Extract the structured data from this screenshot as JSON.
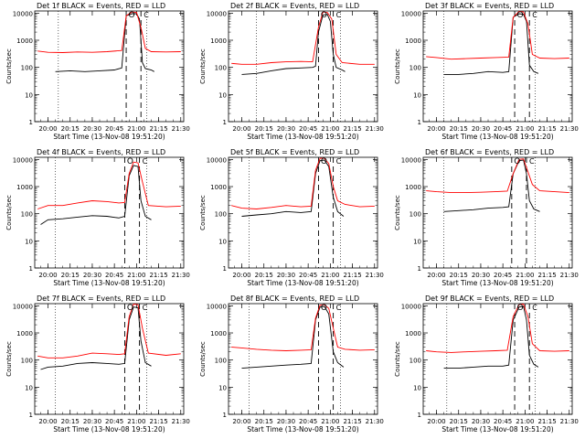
{
  "common": {
    "ylabel": "Counts/sec",
    "xlabel": "Start Time (13-Nov-08 19:51:20)",
    "xticks": [
      "20:00",
      "20:15",
      "20:30",
      "20:45",
      "21:00",
      "21:15",
      "21:30"
    ],
    "yticks": [
      "1",
      "10",
      "100",
      "1000",
      "10000"
    ],
    "annotations": [
      "O",
      "C"
    ],
    "colors": {
      "events": "#000000",
      "lld": "#ff0000"
    }
  },
  "chart_data": [
    {
      "type": "line",
      "title": "Det 1f BLACK = Events, RED = LLD",
      "xlabel": "Start Time (13-Nov-08 19:51:20)",
      "ylabel": "Counts/sec",
      "yscale": "log",
      "ylim": [
        1,
        12000
      ],
      "xlim": [
        "19:51",
        "21:32"
      ],
      "series": [
        {
          "name": "Events",
          "color": "#000000",
          "x": [
            "20:05",
            "20:15",
            "20:25",
            "20:35",
            "20:45",
            "20:50",
            "20:53",
            "20:57",
            "21:00",
            "21:02",
            "21:04",
            "21:06",
            "21:10",
            "21:12"
          ],
          "values": [
            70,
            75,
            70,
            75,
            80,
            95,
            8000,
            9500,
            9500,
            6000,
            150,
            90,
            80,
            70
          ]
        },
        {
          "name": "LLD",
          "color": "#ff0000",
          "x": [
            "19:53",
            "20:00",
            "20:10",
            "20:20",
            "20:30",
            "20:40",
            "20:50",
            "20:53",
            "20:57",
            "21:00",
            "21:03",
            "21:06",
            "21:10",
            "21:20",
            "21:30"
          ],
          "values": [
            400,
            360,
            350,
            370,
            360,
            380,
            420,
            8000,
            11000,
            10500,
            3000,
            500,
            380,
            370,
            380
          ]
        }
      ],
      "vlines_dotted": [
        "20:07",
        "21:07"
      ],
      "vlines_dashed": [
        "20:53",
        "21:03"
      ]
    },
    {
      "type": "line",
      "title": "Det 2f BLACK = Events, RED = LLD",
      "xlabel": "Start Time (13-Nov-08 19:51:20)",
      "ylabel": "Counts/sec",
      "yscale": "log",
      "ylim": [
        1,
        12000
      ],
      "xlim": [
        "19:51",
        "21:32"
      ],
      "series": [
        {
          "name": "Events",
          "color": "#000000",
          "x": [
            "20:00",
            "20:10",
            "20:20",
            "20:30",
            "20:40",
            "20:48",
            "20:50",
            "20:52",
            "20:55",
            "20:58",
            "21:00",
            "21:02",
            "21:04",
            "21:08",
            "21:10"
          ],
          "values": [
            55,
            60,
            75,
            90,
            95,
            100,
            110,
            2000,
            8500,
            9000,
            5000,
            300,
            100,
            80,
            70
          ]
        },
        {
          "name": "LLD",
          "color": "#ff0000",
          "x": [
            "19:53",
            "20:00",
            "20:10",
            "20:20",
            "20:30",
            "20:40",
            "20:48",
            "20:52",
            "20:55",
            "20:58",
            "21:01",
            "21:04",
            "21:08",
            "21:20",
            "21:30"
          ],
          "values": [
            140,
            130,
            130,
            150,
            160,
            165,
            160,
            3000,
            11000,
            10500,
            6000,
            300,
            150,
            130,
            130
          ]
        }
      ],
      "vlines_dotted": [
        "20:10",
        "21:07"
      ],
      "vlines_dashed": [
        "20:52",
        "21:02"
      ]
    },
    {
      "type": "line",
      "title": "Det 3f BLACK = Events, RED = LLD",
      "xlabel": "Start Time (13-Nov-08 19:51:20)",
      "ylabel": "Counts/sec",
      "yscale": "log",
      "ylim": [
        1,
        12000
      ],
      "xlim": [
        "19:51",
        "21:32"
      ],
      "series": [
        {
          "name": "Events",
          "color": "#000000",
          "x": [
            "20:05",
            "20:15",
            "20:25",
            "20:35",
            "20:45",
            "20:49",
            "20:52",
            "20:56",
            "20:59",
            "21:01",
            "21:03",
            "21:06",
            "21:09"
          ],
          "values": [
            55,
            55,
            60,
            70,
            65,
            70,
            7000,
            9500,
            9000,
            5000,
            120,
            70,
            60
          ]
        },
        {
          "name": "LLD",
          "color": "#ff0000",
          "x": [
            "19:53",
            "20:00",
            "20:10",
            "20:20",
            "20:30",
            "20:40",
            "20:49",
            "20:52",
            "20:56",
            "20:59",
            "21:02",
            "21:05",
            "21:10",
            "21:20",
            "21:30"
          ],
          "values": [
            250,
            230,
            200,
            210,
            220,
            230,
            240,
            7000,
            11500,
            11000,
            4000,
            300,
            220,
            210,
            220
          ]
        }
      ],
      "vlines_dotted": [
        "20:05",
        "21:07"
      ],
      "vlines_dashed": [
        "20:53",
        "21:03"
      ]
    },
    {
      "type": "line",
      "title": "Det 4f BLACK = Events, RED = LLD",
      "xlabel": "Start Time (13-Nov-08 19:51:20)",
      "ylabel": "Counts/sec",
      "yscale": "log",
      "ylim": [
        1,
        12000
      ],
      "xlim": [
        "19:51",
        "21:32"
      ],
      "series": [
        {
          "name": "Events",
          "color": "#000000",
          "x": [
            "19:55",
            "20:00",
            "20:10",
            "20:20",
            "20:30",
            "20:40",
            "20:48",
            "20:52",
            "20:55",
            "20:58",
            "21:01",
            "21:03",
            "21:06",
            "21:10"
          ],
          "values": [
            40,
            60,
            65,
            75,
            85,
            80,
            70,
            80,
            2500,
            6000,
            5500,
            300,
            80,
            60
          ]
        },
        {
          "name": "LLD",
          "color": "#ff0000",
          "x": [
            "19:53",
            "20:00",
            "20:10",
            "20:20",
            "20:30",
            "20:40",
            "20:48",
            "20:52",
            "20:55",
            "20:58",
            "21:01",
            "21:04",
            "21:08",
            "21:20",
            "21:30"
          ],
          "values": [
            150,
            200,
            200,
            250,
            300,
            280,
            250,
            260,
            3000,
            8000,
            7500,
            1500,
            200,
            180,
            190
          ]
        }
      ],
      "vlines_dotted": [
        "20:05",
        "21:07"
      ],
      "vlines_dashed": [
        "20:52",
        "21:02"
      ]
    },
    {
      "type": "line",
      "title": "Det 5f BLACK = Events, RED = LLD",
      "xlabel": "Start Time (13-Nov-08 19:51:20)",
      "ylabel": "Counts/sec",
      "yscale": "log",
      "ylim": [
        1,
        12000
      ],
      "xlim": [
        "19:51",
        "21:32"
      ],
      "series": [
        {
          "name": "Events",
          "color": "#000000",
          "x": [
            "20:00",
            "20:10",
            "20:20",
            "20:30",
            "20:40",
            "20:47",
            "20:50",
            "20:53",
            "20:56",
            "20:59",
            "21:02",
            "21:05",
            "21:09"
          ],
          "values": [
            80,
            90,
            100,
            120,
            110,
            120,
            3000,
            9000,
            9500,
            5500,
            400,
            120,
            80
          ]
        },
        {
          "name": "LLD",
          "color": "#ff0000",
          "x": [
            "19:53",
            "20:00",
            "20:10",
            "20:20",
            "20:30",
            "20:40",
            "20:47",
            "20:50",
            "20:53",
            "20:56",
            "20:59",
            "21:02",
            "21:05",
            "21:10",
            "21:20",
            "21:30"
          ],
          "values": [
            200,
            160,
            150,
            170,
            200,
            180,
            190,
            4000,
            11000,
            11000,
            7000,
            1000,
            300,
            220,
            180,
            190
          ]
        }
      ],
      "vlines_dotted": [
        "20:05",
        "21:07"
      ],
      "vlines_dashed": [
        "20:52",
        "21:02"
      ]
    },
    {
      "type": "line",
      "title": "Det 6f BLACK = Events, RED = LLD",
      "xlabel": "Start Time (13-Nov-08 19:51:20)",
      "ylabel": "Counts/sec",
      "yscale": "log",
      "ylim": [
        1,
        12000
      ],
      "xlim": [
        "19:51",
        "21:32"
      ],
      "series": [
        {
          "name": "Events",
          "color": "#000000",
          "x": [
            "20:05",
            "20:15",
            "20:25",
            "20:35",
            "20:45",
            "20:49",
            "20:52",
            "20:56",
            "20:59",
            "21:01",
            "21:03",
            "21:06",
            "21:10"
          ],
          "values": [
            120,
            130,
            140,
            160,
            170,
            180,
            3000,
            9000,
            9500,
            3000,
            300,
            150,
            120
          ]
        },
        {
          "name": "LLD",
          "color": "#ff0000",
          "x": [
            "19:53",
            "20:00",
            "20:10",
            "20:20",
            "20:30",
            "20:40",
            "20:48",
            "20:52",
            "20:56",
            "20:59",
            "21:02",
            "21:05",
            "21:10",
            "21:20",
            "21:30"
          ],
          "values": [
            700,
            650,
            600,
            600,
            620,
            650,
            680,
            3000,
            10000,
            10500,
            3500,
            1200,
            700,
            650,
            600
          ]
        }
      ],
      "vlines_dotted": [
        "20:05",
        "21:07"
      ],
      "vlines_dashed": [
        "20:51",
        "21:01"
      ]
    },
    {
      "type": "line",
      "title": "Det 7f BLACK = Events, RED = LLD",
      "xlabel": "Start Time (13-Nov-08 19:51:20)",
      "ylabel": "Counts/sec",
      "yscale": "log",
      "ylim": [
        1,
        12000
      ],
      "xlim": [
        "19:51",
        "21:32"
      ],
      "series": [
        {
          "name": "Events",
          "color": "#000000",
          "x": [
            "19:55",
            "20:00",
            "20:10",
            "20:20",
            "20:30",
            "20:40",
            "20:48",
            "20:52",
            "20:55",
            "20:58",
            "21:01",
            "21:03",
            "21:06",
            "21:10"
          ],
          "values": [
            45,
            55,
            60,
            75,
            80,
            75,
            70,
            75,
            3000,
            9000,
            8500,
            500,
            80,
            60
          ]
        },
        {
          "name": "LLD",
          "color": "#ff0000",
          "x": [
            "19:53",
            "20:00",
            "20:10",
            "20:20",
            "20:30",
            "20:40",
            "20:48",
            "20:52",
            "20:55",
            "20:58",
            "21:01",
            "21:04",
            "21:08",
            "21:20",
            "21:30"
          ],
          "values": [
            140,
            120,
            120,
            140,
            180,
            170,
            160,
            170,
            4000,
            11500,
            11000,
            1500,
            180,
            150,
            170
          ]
        }
      ],
      "vlines_dotted": [
        "20:05",
        "21:07"
      ],
      "vlines_dashed": [
        "20:52",
        "21:02"
      ]
    },
    {
      "type": "line",
      "title": "Det 8f BLACK = Events, RED = LLD",
      "xlabel": "Start Time (13-Nov-08 19:51:20)",
      "ylabel": "Counts/sec",
      "yscale": "log",
      "ylim": [
        1,
        12000
      ],
      "xlim": [
        "19:51",
        "21:32"
      ],
      "series": [
        {
          "name": "Events",
          "color": "#000000",
          "x": [
            "20:00",
            "20:10",
            "20:20",
            "20:30",
            "20:40",
            "20:47",
            "20:50",
            "20:53",
            "20:56",
            "20:59",
            "21:02",
            "21:05",
            "21:09"
          ],
          "values": [
            50,
            55,
            60,
            65,
            70,
            75,
            3000,
            9000,
            9500,
            5000,
            200,
            80,
            55
          ]
        },
        {
          "name": "LLD",
          "color": "#ff0000",
          "x": [
            "19:53",
            "20:00",
            "20:10",
            "20:20",
            "20:30",
            "20:40",
            "20:47",
            "20:50",
            "20:53",
            "20:56",
            "20:59",
            "21:02",
            "21:05",
            "21:10",
            "21:20",
            "21:30"
          ],
          "values": [
            300,
            280,
            250,
            230,
            220,
            230,
            240,
            3500,
            10500,
            11000,
            8000,
            1500,
            300,
            250,
            230,
            240
          ]
        }
      ],
      "vlines_dotted": [
        "20:05",
        "21:07"
      ],
      "vlines_dashed": [
        "20:52",
        "21:02"
      ]
    },
    {
      "type": "line",
      "title": "Det 9f BLACK = Events, RED = LLD",
      "xlabel": "Start Time (13-Nov-08 19:51:20)",
      "ylabel": "Counts/sec",
      "yscale": "log",
      "ylim": [
        1,
        12000
      ],
      "xlim": [
        "19:51",
        "21:32"
      ],
      "series": [
        {
          "name": "Events",
          "color": "#000000",
          "x": [
            "20:05",
            "20:15",
            "20:25",
            "20:35",
            "20:45",
            "20:49",
            "20:52",
            "20:56",
            "20:59",
            "21:01",
            "21:03",
            "21:06",
            "21:09"
          ],
          "values": [
            50,
            50,
            55,
            60,
            60,
            65,
            3000,
            9000,
            9500,
            3000,
            150,
            70,
            55
          ]
        },
        {
          "name": "LLD",
          "color": "#ff0000",
          "x": [
            "19:53",
            "20:00",
            "20:10",
            "20:20",
            "20:30",
            "20:40",
            "20:48",
            "20:52",
            "20:56",
            "20:59",
            "21:02",
            "21:05",
            "21:10",
            "21:20",
            "21:30"
          ],
          "values": [
            220,
            200,
            190,
            200,
            210,
            220,
            230,
            4000,
            11000,
            11500,
            4000,
            400,
            220,
            210,
            220
          ]
        }
      ],
      "vlines_dotted": [
        "20:07",
        "21:07"
      ],
      "vlines_dashed": [
        "20:53",
        "21:03"
      ]
    }
  ]
}
